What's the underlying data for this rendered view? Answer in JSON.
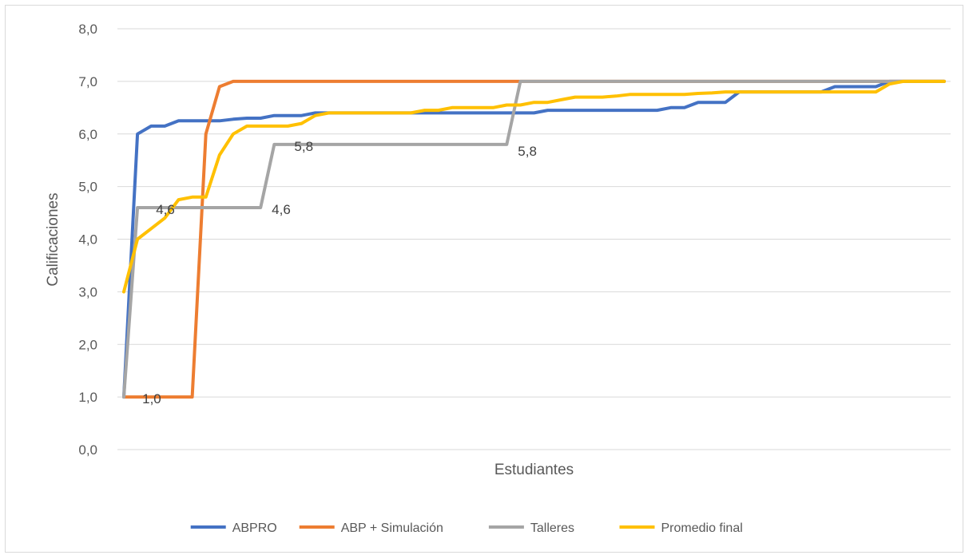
{
  "chart_data": {
    "type": "line",
    "title": "",
    "xlabel": "Estudiantes",
    "ylabel": "Calificaciones",
    "ylim": [
      0,
      8
    ],
    "y_ticks": [
      "0,0",
      "1,0",
      "2,0",
      "3,0",
      "4,0",
      "5,0",
      "6,0",
      "7,0",
      "8,0"
    ],
    "grid": true,
    "legend_position": "bottom",
    "x_count": 61,
    "series": [
      {
        "name": "ABPRO",
        "color": "#4472c4",
        "values": [
          1.0,
          6.0,
          6.15,
          6.15,
          6.25,
          6.25,
          6.25,
          6.25,
          6.28,
          6.3,
          6.3,
          6.35,
          6.35,
          6.35,
          6.4,
          6.4,
          6.4,
          6.4,
          6.4,
          6.4,
          6.4,
          6.4,
          6.4,
          6.4,
          6.4,
          6.4,
          6.4,
          6.4,
          6.4,
          6.4,
          6.4,
          6.45,
          6.45,
          6.45,
          6.45,
          6.45,
          6.45,
          6.45,
          6.45,
          6.45,
          6.5,
          6.5,
          6.6,
          6.6,
          6.6,
          6.8,
          6.8,
          6.8,
          6.8,
          6.8,
          6.8,
          6.8,
          6.9,
          6.9,
          6.9,
          6.9,
          7.0,
          7.0,
          7.0,
          7.0,
          7.0
        ]
      },
      {
        "name": "ABP + Simulación",
        "color": "#ed7d31",
        "values": [
          1.0,
          1.0,
          1.0,
          1.0,
          1.0,
          1.0,
          6.0,
          6.9,
          7.0,
          7.0,
          7.0,
          7.0,
          7.0,
          7.0,
          7.0,
          7.0,
          7.0,
          7.0,
          7.0,
          7.0,
          7.0,
          7.0,
          7.0,
          7.0,
          7.0,
          7.0,
          7.0,
          7.0,
          7.0,
          7.0,
          7.0,
          7.0,
          7.0,
          7.0,
          7.0,
          7.0,
          7.0,
          7.0,
          7.0,
          7.0,
          7.0,
          7.0,
          7.0,
          7.0,
          7.0,
          7.0,
          7.0,
          7.0,
          7.0,
          7.0,
          7.0,
          7.0,
          7.0,
          7.0,
          7.0,
          7.0,
          7.0,
          7.0,
          7.0,
          7.0,
          7.0
        ]
      },
      {
        "name": "Talleres",
        "color": "#a5a5a5",
        "values": [
          1.0,
          4.6,
          4.6,
          4.6,
          4.6,
          4.6,
          4.6,
          4.6,
          4.6,
          4.6,
          4.6,
          5.8,
          5.8,
          5.8,
          5.8,
          5.8,
          5.8,
          5.8,
          5.8,
          5.8,
          5.8,
          5.8,
          5.8,
          5.8,
          5.8,
          5.8,
          5.8,
          5.8,
          5.8,
          7.0,
          7.0,
          7.0,
          7.0,
          7.0,
          7.0,
          7.0,
          7.0,
          7.0,
          7.0,
          7.0,
          7.0,
          7.0,
          7.0,
          7.0,
          7.0,
          7.0,
          7.0,
          7.0,
          7.0,
          7.0,
          7.0,
          7.0,
          7.0,
          7.0,
          7.0,
          7.0,
          7.0,
          7.0,
          7.0,
          7.0,
          7.0
        ]
      },
      {
        "name": "Promedio final",
        "color": "#ffc000",
        "values": [
          3.0,
          4.0,
          4.2,
          4.4,
          4.75,
          4.8,
          4.8,
          5.6,
          6.0,
          6.15,
          6.15,
          6.15,
          6.15,
          6.2,
          6.35,
          6.4,
          6.4,
          6.4,
          6.4,
          6.4,
          6.4,
          6.4,
          6.45,
          6.45,
          6.5,
          6.5,
          6.5,
          6.5,
          6.55,
          6.55,
          6.6,
          6.6,
          6.65,
          6.7,
          6.7,
          6.7,
          6.72,
          6.75,
          6.75,
          6.75,
          6.75,
          6.75,
          6.77,
          6.78,
          6.8,
          6.8,
          6.8,
          6.8,
          6.8,
          6.8,
          6.8,
          6.8,
          6.8,
          6.8,
          6.8,
          6.8,
          6.95,
          7.0,
          7.0,
          7.0,
          7.0
        ]
      }
    ],
    "annotations": [
      {
        "series": "ABP + Simulación",
        "index": 1,
        "text": "1,0"
      },
      {
        "series": "Talleres",
        "index": 2,
        "text": "4,6"
      },
      {
        "series": "Talleres",
        "index": 10,
        "text": "4,6"
      },
      {
        "series": "Talleres",
        "index": 12,
        "text": "5,8"
      },
      {
        "series": "Talleres",
        "index": 28,
        "text": "5,8"
      }
    ]
  }
}
